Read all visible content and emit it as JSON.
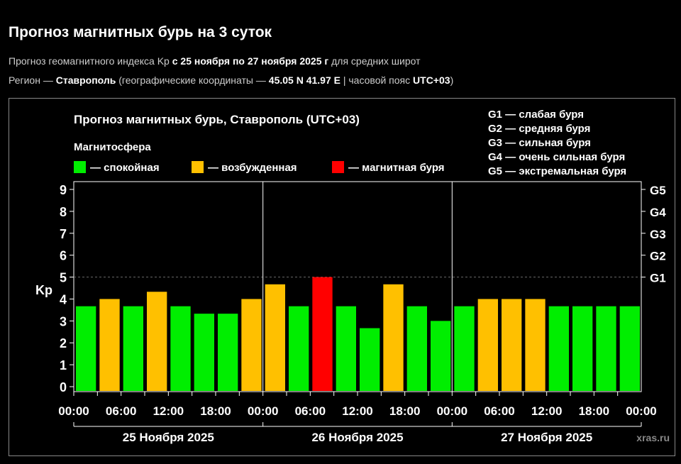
{
  "header": {
    "title": "Прогноз магнитных бурь на 3 суток",
    "sub1": {
      "a": "Прогноз геомагнитного индекса Kp ",
      "b": "с 25 ноября по 27 ноября 2025 г",
      "c": " для средних широт"
    },
    "sub2": {
      "a": "Регион — ",
      "b": "Ставрополь",
      "c": " (географические координаты — ",
      "d": "45.05 N 41.97 E",
      "e": " | часовой пояс ",
      "f": "UTC+03",
      "g": ")"
    }
  },
  "chart_data": {
    "type": "bar",
    "title": "Прогноз магнитных бурь, Ставрополь (UTC+03)",
    "legend_title": "Магнитосфера",
    "legend": [
      {
        "label": "— спокойная",
        "color": "#00ee00"
      },
      {
        "label": "— возбужденная",
        "color": "#ffc000"
      },
      {
        "label": "— магнитная буря",
        "color": "#ff0000"
      }
    ],
    "g_legend": [
      "G1 — слабая буря",
      "G2 — средняя буря",
      "G3 — сильная буря",
      "G4 — очень сильная буря",
      "G5 — экстремальная буря"
    ],
    "ylabel": "Kp",
    "ylim": [
      0,
      9
    ],
    "yticks": [
      0,
      1,
      2,
      3,
      4,
      5,
      6,
      7,
      8,
      9
    ],
    "right_ticks": [
      {
        "value": 5,
        "label": "G1"
      },
      {
        "value": 6,
        "label": "G2"
      },
      {
        "value": 7,
        "label": "G3"
      },
      {
        "value": 8,
        "label": "G4"
      },
      {
        "value": 9,
        "label": "G5"
      }
    ],
    "storm_threshold": 5,
    "xtick_labels": [
      "00:00",
      "06:00",
      "12:00",
      "18:00",
      "00:00",
      "06:00",
      "12:00",
      "18:00",
      "00:00",
      "06:00",
      "12:00",
      "18:00",
      "00:00"
    ],
    "days": [
      "25 Ноября 2025",
      "26 Ноября 2025",
      "27 Ноября 2025"
    ],
    "values": [
      3.67,
      4,
      3.67,
      4.33,
      3.67,
      3.33,
      3.33,
      4,
      4.67,
      3.67,
      5,
      3.67,
      2.67,
      4.67,
      3.67,
      3,
      3.67,
      4,
      4,
      4,
      3.67,
      3.67,
      3.67,
      3.67
    ],
    "colors": {
      "calm": "#00ee00",
      "active": "#ffc000",
      "storm": "#ff0000"
    },
    "watermark": "xras.ru"
  }
}
